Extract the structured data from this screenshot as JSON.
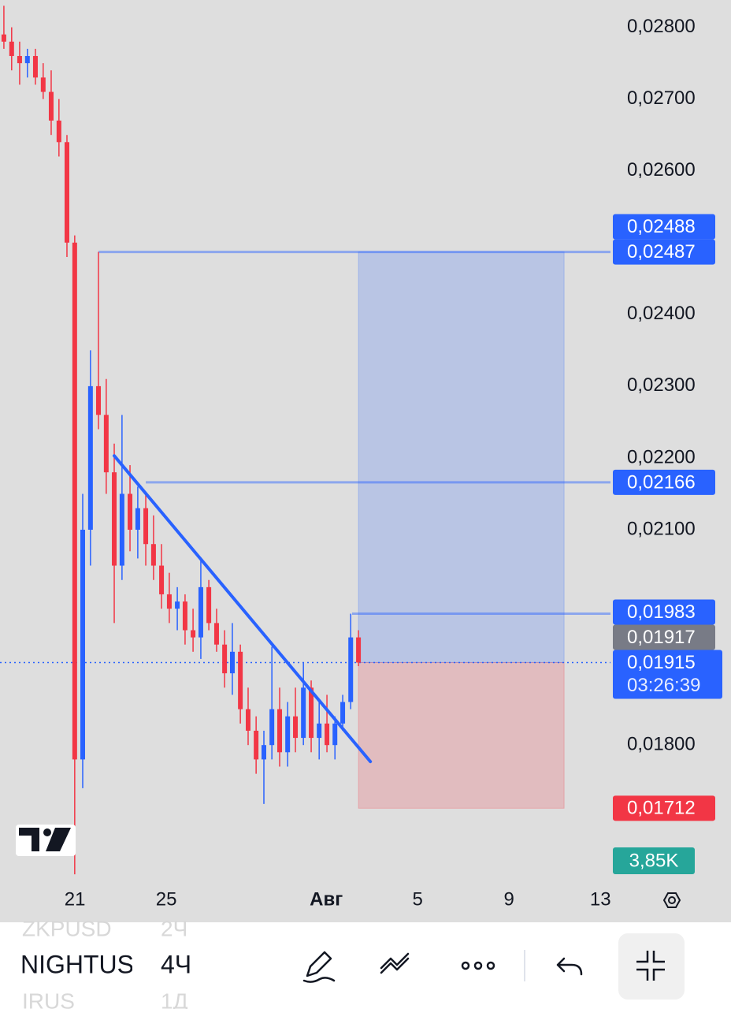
{
  "chart_data": {
    "type": "candlestick",
    "x": [
      17.89,
      18.23,
      18.58,
      18.92,
      19.27,
      19.61,
      19.96,
      20.3,
      20.65,
      20.99,
      21.34,
      21.68,
      22.03,
      22.37,
      22.72,
      23.06,
      23.41,
      23.75,
      24.1,
      24.44,
      24.79,
      25.13,
      25.48,
      25.82,
      26.17,
      26.51,
      26.86,
      27.2,
      27.55,
      27.89,
      28.24,
      28.58,
      28.93,
      29.27,
      29.62,
      29.96,
      30.31,
      30.65,
      31.0,
      31.34,
      31.69,
      32.03,
      32.38,
      32.72,
      33.07,
      33.41
    ],
    "open": [
      0.0279,
      0.0278,
      0.0276,
      0.0275,
      0.0276,
      0.0273,
      0.0271,
      0.0267,
      0.0264,
      0.025,
      0.0178,
      0.021,
      0.023,
      0.0226,
      0.0218,
      0.0205,
      0.0215,
      0.021,
      0.0213,
      0.0208,
      0.0205,
      0.0201,
      0.0199,
      0.02,
      0.0196,
      0.0195,
      0.0202,
      0.0197,
      0.0194,
      0.019,
      0.0193,
      0.0185,
      0.0182,
      0.0178,
      0.018,
      0.0185,
      0.0179,
      0.0184,
      0.0181,
      0.0188,
      0.0181,
      0.0183,
      0.018,
      0.0183,
      0.0186,
      0.0195
    ],
    "high": [
      0.0283,
      0.028,
      0.0278,
      0.0277,
      0.0277,
      0.0275,
      0.0274,
      0.027,
      0.0265,
      0.0251,
      0.0215,
      0.0235,
      0.02487,
      0.0231,
      0.0222,
      0.0226,
      0.0219,
      0.0216,
      0.0215,
      0.0212,
      0.0208,
      0.0204,
      0.0202,
      0.0201,
      0.0199,
      0.02058,
      0.0203,
      0.0199,
      0.0196,
      0.0197,
      0.0194,
      0.0188,
      0.0184,
      0.0182,
      0.01937,
      0.0188,
      0.0186,
      0.0188,
      0.01915,
      0.0189,
      0.0186,
      0.0187,
      0.0184,
      0.0187,
      0.01983,
      0.0196
    ],
    "low": [
      0.0277,
      0.0274,
      0.0272,
      0.0273,
      0.0272,
      0.027,
      0.0265,
      0.0262,
      0.0248,
      0.0162,
      0.0174,
      0.0205,
      0.0224,
      0.0215,
      0.0197,
      0.0203,
      0.0207,
      0.0206,
      0.0205,
      0.0203,
      0.0199,
      0.0197,
      0.0196,
      0.0194,
      0.0193,
      0.0192,
      0.0196,
      0.0193,
      0.0188,
      0.0187,
      0.0183,
      0.018,
      0.0176,
      0.01718,
      0.0178,
      0.0177,
      0.0177,
      0.0179,
      0.018,
      0.0179,
      0.0178,
      0.0179,
      0.0178,
      0.0182,
      0.0185,
      0.0191
    ],
    "close": [
      0.0278,
      0.0276,
      0.0275,
      0.0276,
      0.0273,
      0.0271,
      0.0267,
      0.0264,
      0.025,
      0.0178,
      0.021,
      0.023,
      0.0226,
      0.0218,
      0.0205,
      0.0215,
      0.021,
      0.0213,
      0.0208,
      0.0205,
      0.0201,
      0.0199,
      0.02,
      0.0196,
      0.0195,
      0.0202,
      0.0197,
      0.0194,
      0.019,
      0.0193,
      0.0185,
      0.0182,
      0.0178,
      0.018,
      0.0185,
      0.0179,
      0.0184,
      0.0181,
      0.0188,
      0.0181,
      0.0183,
      0.018,
      0.0183,
      0.0186,
      0.0195,
      0.01915
    ],
    "up_color": "#2962ff",
    "down_color": "#f23645",
    "xlim": [
      17.72,
      44.44
    ],
    "xticks": [
      {
        "value": 21,
        "label": "21"
      },
      {
        "value": 25,
        "label": "25"
      },
      {
        "value": 32,
        "label": "Авг"
      },
      {
        "value": 36,
        "label": "5"
      },
      {
        "value": 40,
        "label": "9"
      },
      {
        "value": 44,
        "label": "13"
      }
    ],
    "ylim": [
      0.01619,
      0.02838
    ],
    "yticks": [
      {
        "value": 0.028,
        "label": "0,02800"
      },
      {
        "value": 0.027,
        "label": "0,02700"
      },
      {
        "value": 0.026,
        "label": "0,02600"
      },
      {
        "value": 0.024,
        "label": "0,02400"
      },
      {
        "value": 0.023,
        "label": "0,02300"
      },
      {
        "value": 0.022,
        "label": "0,02200"
      },
      {
        "value": 0.021,
        "label": "0,02100"
      },
      {
        "value": 0.018,
        "label": "0,01800"
      }
    ],
    "price_labels": [
      {
        "value": 0.01915,
        "label": "0,01915",
        "sub": "03:26:39",
        "color": "#2962ff"
      },
      {
        "value": 0.01917,
        "label": "0,01917",
        "color": "#787b86"
      },
      {
        "value": 0.01983,
        "label": "0,01983",
        "color": "#2962ff"
      },
      {
        "value": 0.02166,
        "label": "0,02166",
        "color": "#2962ff"
      },
      {
        "value": 0.02487,
        "label": "0,02487",
        "color": "#2962ff"
      },
      {
        "value": 0.02488,
        "label": "0,02488",
        "color": "#2962ff"
      },
      {
        "value": 0.01712,
        "label": "0,01712",
        "color": "#f23645"
      }
    ],
    "hlines": [
      {
        "value": 0.02487,
        "from": 22.03
      },
      {
        "value": 0.02166,
        "from": 24.1
      },
      {
        "value": 0.01983,
        "from": 33.13
      }
    ],
    "current_price": 0.01915,
    "trendline": {
      "x": [
        22.72,
        33.93
      ],
      "y": [
        0.02203,
        0.01777
      ],
      "color": "#2962ff"
    },
    "position": {
      "from": 33.41,
      "to": 42.41,
      "entry": 0.01915,
      "target": 0.02487,
      "stop": 0.01712
    },
    "volume_label": "3,85K"
  },
  "toolbar": {
    "symbols": [
      "ZKPUSD",
      "NIGHTUS",
      "IRUS"
    ],
    "intervals": [
      "2Ч",
      "4Ч",
      "1Д"
    ]
  }
}
